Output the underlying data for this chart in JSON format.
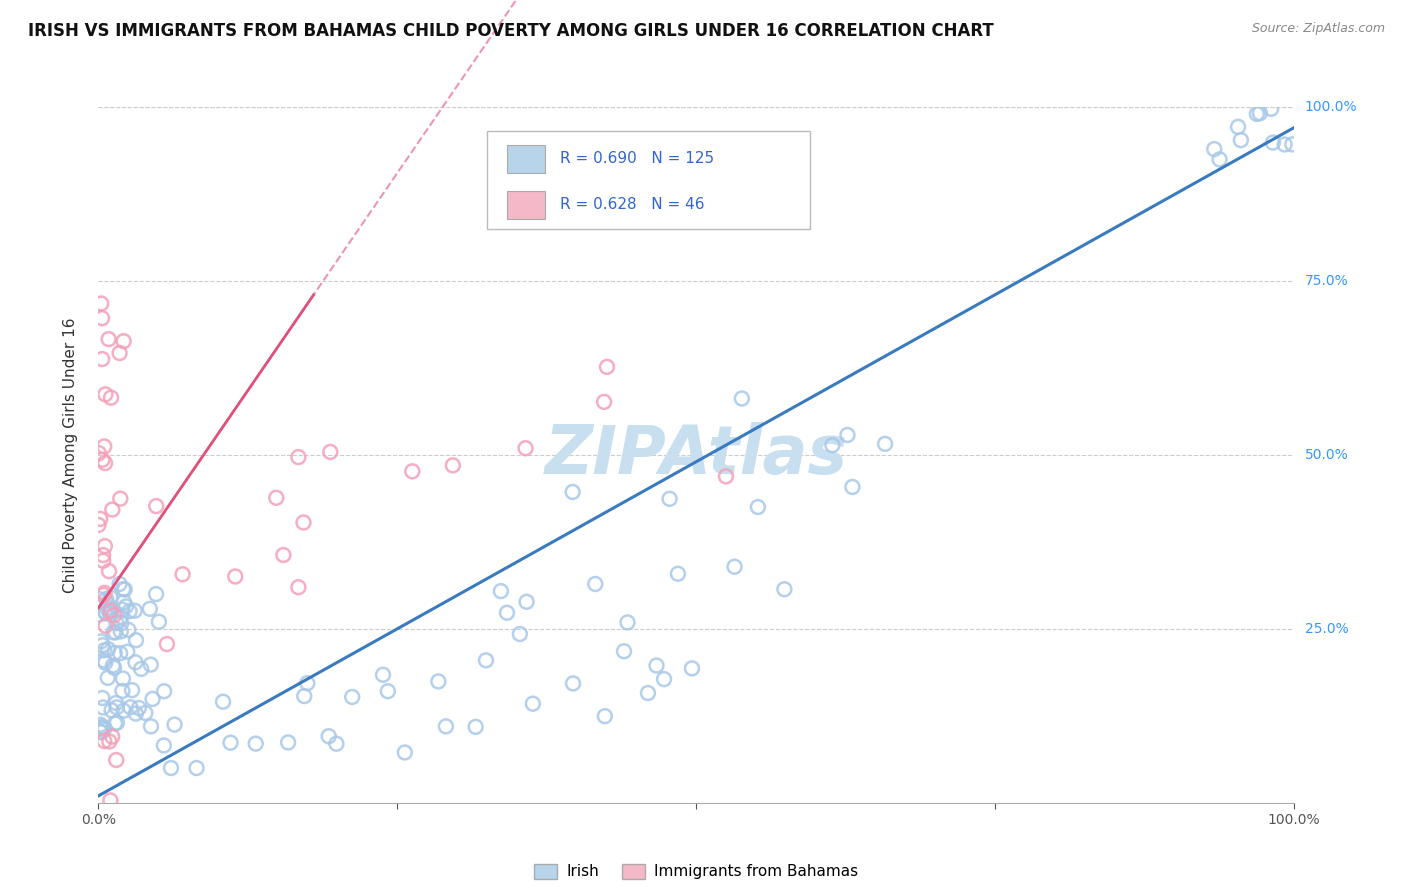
{
  "title": "IRISH VS IMMIGRANTS FROM BAHAMAS CHILD POVERTY AMONG GIRLS UNDER 16 CORRELATION CHART",
  "source": "Source: ZipAtlas.com",
  "ylabel": "Child Poverty Among Girls Under 16",
  "xlabel_irish": "Irish",
  "xlabel_bahamas": "Immigrants from Bahamas",
  "irish_R": 0.69,
  "irish_N": 125,
  "bahamas_R": 0.628,
  "bahamas_N": 46,
  "irish_color": "#a8c8e8",
  "bahamas_color": "#f4a0b8",
  "irish_line_color": "#3a7abf",
  "bahamas_line_color": "#e0507a",
  "legend_box_color_irish": "#b8d4ea",
  "legend_box_color_bahamas": "#f4b8c8",
  "watermark_color": "#c8dff0",
  "background_color": "#ffffff",
  "title_fontsize": 12,
  "axis_label_fontsize": 11,
  "tick_fontsize": 10,
  "xlim": [
    0,
    1
  ],
  "ylim": [
    0,
    1
  ]
}
